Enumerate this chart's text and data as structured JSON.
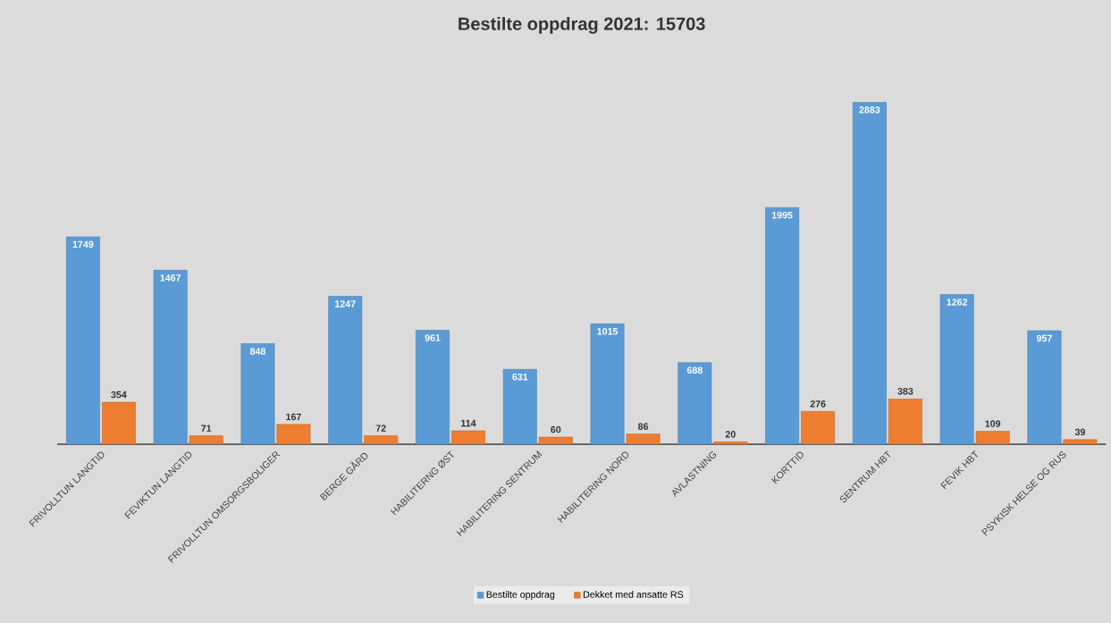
{
  "chart_data": {
    "type": "bar",
    "title": "Bestilte oppdrag 2021: 15703",
    "categories": [
      "FRIVOLLTUN LANGTID",
      "FEVIKTUN LANGTID",
      "FRIVOLLTUN OMSORGSBOLIGER",
      "BERGE GÅRD",
      "HABILITERNG ØST",
      "HABILITERING SENTRUM",
      "HABILITERING NORD",
      "AVLASTNING",
      "KORTTID",
      "SENTRUM HBT",
      "FEVIK HBT",
      "PSYKISK HELSE OG RUS"
    ],
    "series": [
      {
        "name": "Bestilte oppdrag",
        "color": "#5b9bd5",
        "values": [
          1749,
          1467,
          848,
          1247,
          961,
          631,
          1015,
          688,
          1995,
          2883,
          1262,
          957
        ]
      },
      {
        "name": "Dekket med ansatte RS",
        "color": "#ed7d31",
        "values": [
          354,
          71,
          167,
          72,
          114,
          60,
          86,
          20,
          276,
          383,
          109,
          39
        ]
      }
    ],
    "tick_labels": "x",
    "data_labels": true,
    "legend": "bottom"
  }
}
